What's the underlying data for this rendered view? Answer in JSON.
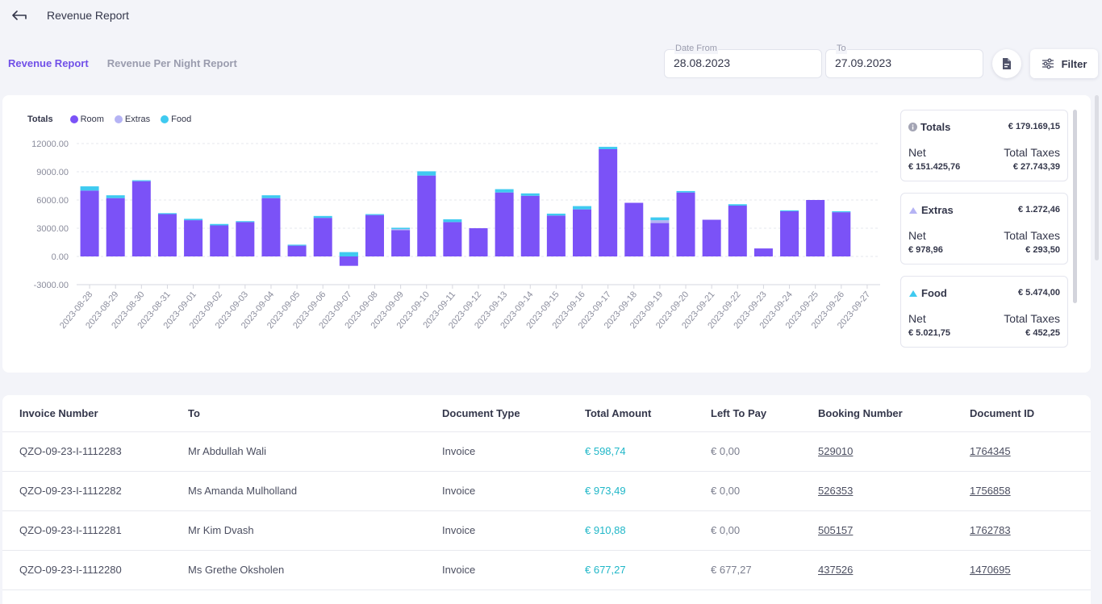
{
  "header": {
    "title": "Revenue Report"
  },
  "tabs": [
    {
      "label": "Revenue Report",
      "active": true
    },
    {
      "label": "Revenue Per Night Report",
      "active": false
    }
  ],
  "date_from": {
    "label": "Date From",
    "value": "28.08.2023"
  },
  "date_to": {
    "label": "To",
    "value": "27.09.2023"
  },
  "filter": {
    "label": "Filter"
  },
  "legend": {
    "title": "Totals",
    "items": [
      {
        "label": "Room",
        "color": "#7b52f7"
      },
      {
        "label": "Extras",
        "color": "#b5b3f4"
      },
      {
        "label": "Food",
        "color": "#3fcaf0"
      }
    ]
  },
  "chart_data": {
    "type": "bar",
    "stacked": true,
    "title": "Totals",
    "xlabel": "",
    "ylabel": "",
    "ylim": [
      -3000,
      12000
    ],
    "yticks": [
      "12000.00",
      "9000.00",
      "6000.00",
      "3000.00",
      "0.00",
      "-3000.00"
    ],
    "categories": [
      "2023-08-28",
      "2023-08-29",
      "2023-08-30",
      "2023-08-31",
      "2023-09-01",
      "2023-09-02",
      "2023-09-03",
      "2023-09-04",
      "2023-09-05",
      "2023-09-06",
      "2023-09-07",
      "2023-09-08",
      "2023-09-09",
      "2023-09-10",
      "2023-09-11",
      "2023-09-12",
      "2023-09-13",
      "2023-09-14",
      "2023-09-15",
      "2023-09-16",
      "2023-09-17",
      "2023-09-18",
      "2023-09-19",
      "2023-09-20",
      "2023-09-21",
      "2023-09-22",
      "2023-09-23",
      "2023-09-24",
      "2023-09-25",
      "2023-09-26",
      "2023-09-27"
    ],
    "series": [
      {
        "name": "Room",
        "color": "#7b52f7",
        "values": [
          7000,
          6200,
          8000,
          4500,
          3850,
          3300,
          3650,
          6200,
          1150,
          4100,
          -1000,
          4400,
          2800,
          8600,
          3650,
          3000,
          6800,
          6450,
          4350,
          5000,
          11400,
          5700,
          3550,
          6800,
          3900,
          5400,
          850,
          4800,
          6000,
          4700,
          0
        ]
      },
      {
        "name": "Extras",
        "color": "#b5b3f4",
        "values": [
          0,
          0,
          0,
          0,
          0,
          0,
          0,
          0,
          0,
          0,
          0,
          0,
          100,
          0,
          0,
          0,
          0,
          0,
          0,
          0,
          0,
          0,
          300,
          0,
          0,
          0,
          0,
          0,
          0,
          0,
          0
        ]
      },
      {
        "name": "Food",
        "color": "#3fcaf0",
        "values": [
          450,
          300,
          100,
          100,
          150,
          150,
          100,
          300,
          100,
          200,
          450,
          100,
          150,
          450,
          300,
          0,
          350,
          250,
          200,
          350,
          250,
          0,
          300,
          150,
          0,
          150,
          0,
          100,
          0,
          100,
          0
        ]
      }
    ]
  },
  "summary": [
    {
      "name": "Totals",
      "icon": "info-icon",
      "icon_color": "#a3a4b4",
      "total": "€ 179.169,15",
      "net_label": "Net",
      "net": "€ 151.425,76",
      "tax_label": "Total Taxes",
      "tax": "€ 27.743,39"
    },
    {
      "name": "Extras",
      "icon": "extras-icon",
      "icon_color": "#b5b3f4",
      "total": "€ 1.272,46",
      "net_label": "Net",
      "net": "€ 978,96",
      "tax_label": "Total Taxes",
      "tax": "€ 293,50"
    },
    {
      "name": "Food",
      "icon": "food-icon",
      "icon_color": "#3fcaf0",
      "total": "€ 5.474,00",
      "net_label": "Net",
      "net": "€ 5.021,75",
      "tax_label": "Total Taxes",
      "tax": "€ 452,25"
    }
  ],
  "table": {
    "headers": [
      "Invoice Number",
      "To",
      "Document Type",
      "Total Amount",
      "Left To Pay",
      "Booking Number",
      "Document ID"
    ],
    "rows": [
      {
        "invoice": "QZO-09-23-I-1112283",
        "to": "Mr Abdullah Wali",
        "type": "Invoice",
        "total": "€ 598,74",
        "left": "€ 0,00",
        "booking": "529010",
        "doc_id": "1764345"
      },
      {
        "invoice": "QZO-09-23-I-1112282",
        "to": "Ms Amanda Mulholland",
        "type": "Invoice",
        "total": "€ 973,49",
        "left": "€ 0,00",
        "booking": "526353",
        "doc_id": "1756858"
      },
      {
        "invoice": "QZO-09-23-I-1112281",
        "to": "Mr Kim Dvash",
        "type": "Invoice",
        "total": "€ 910,88",
        "left": "€ 0,00",
        "booking": "505157",
        "doc_id": "1762783"
      },
      {
        "invoice": "QZO-09-23-I-1112280",
        "to": "Ms Grethe Oksholen",
        "type": "Invoice",
        "total": "€ 677,27",
        "left": "€ 677,27",
        "booking": "437526",
        "doc_id": "1470695"
      }
    ]
  }
}
